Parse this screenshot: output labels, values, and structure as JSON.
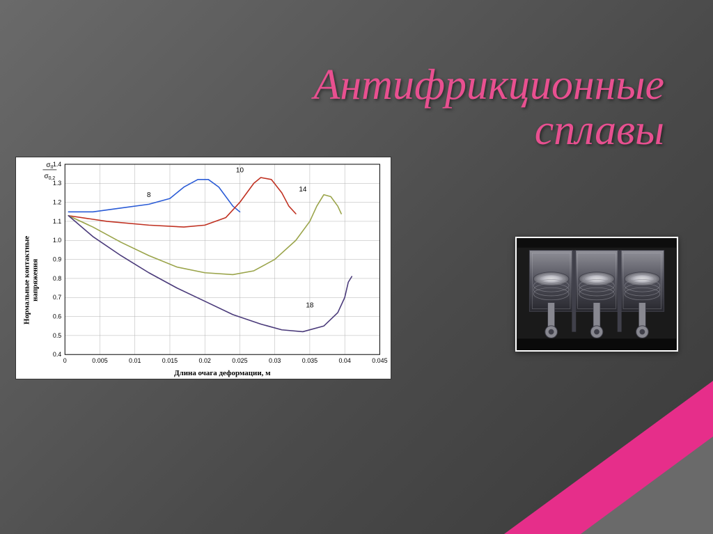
{
  "title_line1": "Антифрикционные",
  "title_line2": "сплавы",
  "chart": {
    "type": "line",
    "xlabel": "Длина очага деформации, м",
    "ylabel": "Нормальные контактные\nнапряжения",
    "y_unit_frac_top": "σ",
    "y_unit_frac_sub_top": "II",
    "y_unit_frac_bottom": "σ",
    "y_unit_frac_sub_bottom": "0,2",
    "xlim": [
      0,
      0.045
    ],
    "ylim": [
      0.4,
      1.4
    ],
    "xtick_step": 0.005,
    "ytick_step": 0.1,
    "xticks": [
      0,
      0.005,
      0.01,
      0.015,
      0.02,
      0.025,
      0.03,
      0.035,
      0.04,
      0.045
    ],
    "yticks": [
      0.4,
      0.5,
      0.6,
      0.7,
      0.8,
      0.9,
      1.0,
      1.1,
      1.2,
      1.3,
      1.4
    ],
    "grid_color": "#b0b0b0",
    "background_color": "#ffffff",
    "axis_color": "#000000",
    "label_fontsize": 11,
    "tick_fontsize": 9,
    "line_width": 1.6,
    "series": [
      {
        "label": "8",
        "color": "#2a5bd6",
        "label_x": 0.012,
        "label_y": 1.22,
        "points": [
          [
            0.0005,
            1.15
          ],
          [
            0.004,
            1.15
          ],
          [
            0.008,
            1.17
          ],
          [
            0.012,
            1.19
          ],
          [
            0.015,
            1.22
          ],
          [
            0.017,
            1.28
          ],
          [
            0.019,
            1.32
          ],
          [
            0.0205,
            1.32
          ],
          [
            0.022,
            1.28
          ],
          [
            0.024,
            1.18
          ],
          [
            0.025,
            1.15
          ]
        ]
      },
      {
        "label": "10",
        "color": "#c03020",
        "label_x": 0.025,
        "label_y": 1.35,
        "points": [
          [
            0.0005,
            1.13
          ],
          [
            0.006,
            1.1
          ],
          [
            0.012,
            1.08
          ],
          [
            0.017,
            1.07
          ],
          [
            0.02,
            1.08
          ],
          [
            0.023,
            1.12
          ],
          [
            0.025,
            1.2
          ],
          [
            0.027,
            1.3
          ],
          [
            0.028,
            1.33
          ],
          [
            0.0295,
            1.32
          ],
          [
            0.031,
            1.25
          ],
          [
            0.032,
            1.18
          ],
          [
            0.033,
            1.14
          ]
        ]
      },
      {
        "label": "14",
        "color": "#9aa44a",
        "label_x": 0.034,
        "label_y": 1.25,
        "points": [
          [
            0.0005,
            1.13
          ],
          [
            0.004,
            1.07
          ],
          [
            0.008,
            0.99
          ],
          [
            0.012,
            0.92
          ],
          [
            0.016,
            0.86
          ],
          [
            0.02,
            0.83
          ],
          [
            0.024,
            0.82
          ],
          [
            0.027,
            0.84
          ],
          [
            0.03,
            0.9
          ],
          [
            0.033,
            1.0
          ],
          [
            0.035,
            1.1
          ],
          [
            0.036,
            1.18
          ],
          [
            0.037,
            1.24
          ],
          [
            0.038,
            1.23
          ],
          [
            0.039,
            1.18
          ],
          [
            0.0395,
            1.14
          ]
        ]
      },
      {
        "label": "18",
        "color": "#4a3a7a",
        "label_x": 0.035,
        "label_y": 0.64,
        "points": [
          [
            0.0005,
            1.13
          ],
          [
            0.004,
            1.02
          ],
          [
            0.008,
            0.92
          ],
          [
            0.012,
            0.83
          ],
          [
            0.016,
            0.75
          ],
          [
            0.02,
            0.68
          ],
          [
            0.024,
            0.61
          ],
          [
            0.028,
            0.56
          ],
          [
            0.031,
            0.53
          ],
          [
            0.034,
            0.52
          ],
          [
            0.037,
            0.55
          ],
          [
            0.039,
            0.62
          ],
          [
            0.04,
            0.7
          ],
          [
            0.0405,
            0.78
          ],
          [
            0.041,
            0.81
          ]
        ]
      }
    ]
  },
  "photo": {
    "description": "engine-pistons-cutaway",
    "bg_color": "#1a1a1a",
    "metal_light": "#c8c8cc",
    "metal_mid": "#888890",
    "metal_dark": "#40404a"
  }
}
